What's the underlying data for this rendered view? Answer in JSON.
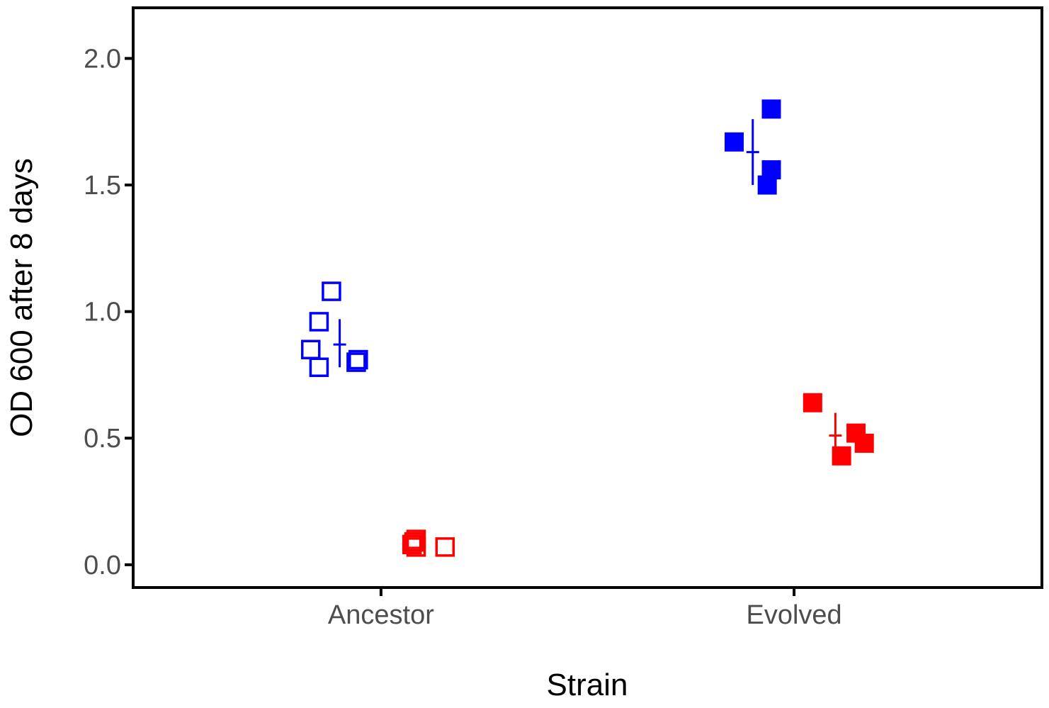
{
  "chart_data": {
    "type": "scatter",
    "title": "",
    "xlabel": "Strain",
    "ylabel": "OD 600 after 8 days",
    "categories": [
      "Ancestor",
      "Evolved"
    ],
    "ylim": [
      -0.09,
      2.2
    ],
    "yticks": [
      {
        "value": 0.0,
        "label": "0.0"
      },
      {
        "value": 0.5,
        "label": "0.5"
      },
      {
        "value": 1.0,
        "label": "1.0"
      },
      {
        "value": 1.5,
        "label": "1.5"
      },
      {
        "value": 2.0,
        "label": "2.0"
      }
    ],
    "grid": false,
    "legend": "none",
    "series": [
      {
        "color": "#0000ff",
        "points": [
          {
            "category": "Ancestor",
            "y": 1.08,
            "filled": false,
            "jitter": -0.12
          },
          {
            "category": "Ancestor",
            "y": 0.96,
            "filled": false,
            "jitter": -0.15
          },
          {
            "category": "Ancestor",
            "y": 0.85,
            "filled": false,
            "jitter": -0.17
          },
          {
            "category": "Ancestor",
            "y": 0.78,
            "filled": false,
            "jitter": -0.15
          },
          {
            "category": "Ancestor",
            "y": 0.8,
            "filled": false,
            "jitter": -0.06
          },
          {
            "category": "Ancestor",
            "y": 0.81,
            "filled": false,
            "jitter": -0.055
          },
          {
            "category": "Evolved",
            "y": 1.8,
            "filled": true,
            "jitter": -0.055
          },
          {
            "category": "Evolved",
            "y": 1.67,
            "filled": true,
            "jitter": -0.145
          },
          {
            "category": "Evolved",
            "y": 1.56,
            "filled": true,
            "jitter": -0.055
          },
          {
            "category": "Evolved",
            "y": 1.5,
            "filled": true,
            "jitter": -0.065
          }
        ],
        "summary": [
          {
            "category": "Ancestor",
            "mean": 0.87,
            "low": 0.78,
            "high": 0.97,
            "offset": -0.1
          },
          {
            "category": "Evolved",
            "mean": 1.63,
            "low": 1.5,
            "high": 1.76,
            "offset": -0.1
          }
        ]
      },
      {
        "color": "#ff0000",
        "points": [
          {
            "category": "Ancestor",
            "y": 0.1,
            "filled": false,
            "jitter": 0.085
          },
          {
            "category": "Ancestor",
            "y": 0.08,
            "filled": false,
            "jitter": 0.075
          },
          {
            "category": "Ancestor",
            "y": 0.07,
            "filled": false,
            "jitter": 0.085
          },
          {
            "category": "Ancestor",
            "y": 0.09,
            "filled": false,
            "jitter": 0.08
          },
          {
            "category": "Ancestor",
            "y": 0.07,
            "filled": false,
            "jitter": 0.155
          }
        ],
        "summary": []
      },
      {
        "color": "#ff0000",
        "points": [
          {
            "category": "Evolved",
            "y": 0.64,
            "filled": true,
            "jitter": 0.045
          },
          {
            "category": "Evolved",
            "y": 0.52,
            "filled": true,
            "jitter": 0.15
          },
          {
            "category": "Evolved",
            "y": 0.48,
            "filled": true,
            "jitter": 0.17
          },
          {
            "category": "Evolved",
            "y": 0.43,
            "filled": true,
            "jitter": 0.115
          }
        ],
        "summary": [
          {
            "category": "Evolved",
            "mean": 0.51,
            "low": 0.44,
            "high": 0.6,
            "offset": 0.1
          }
        ]
      }
    ]
  }
}
